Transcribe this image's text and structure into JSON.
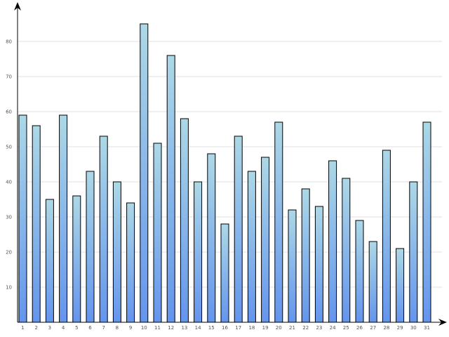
{
  "chart_data": {
    "type": "bar",
    "title": "",
    "xlabel": "",
    "ylabel": "",
    "categories": [
      "1",
      "2",
      "3",
      "4",
      "5",
      "6",
      "7",
      "8",
      "9",
      "10",
      "11",
      "12",
      "13",
      "14",
      "15",
      "16",
      "17",
      "18",
      "19",
      "20",
      "21",
      "22",
      "23",
      "24",
      "25",
      "26",
      "27",
      "28",
      "29",
      "30",
      "31"
    ],
    "values": [
      59,
      56,
      35,
      59,
      36,
      43,
      53,
      40,
      34,
      85,
      51,
      76,
      58,
      40,
      48,
      28,
      53,
      43,
      47,
      57,
      32,
      38,
      33,
      46,
      41,
      29,
      23,
      49,
      21,
      40,
      57
    ],
    "ylim": [
      0,
      88
    ],
    "yticks": [
      "10",
      "20",
      "30",
      "40",
      "50",
      "60",
      "70",
      "80"
    ],
    "grid": true,
    "legend": "none",
    "colors": {
      "bar_top": "#add8e6",
      "bar_bottom": "#6495ed",
      "bar_outline": "#000000",
      "grid": "#e2e2e2"
    }
  }
}
